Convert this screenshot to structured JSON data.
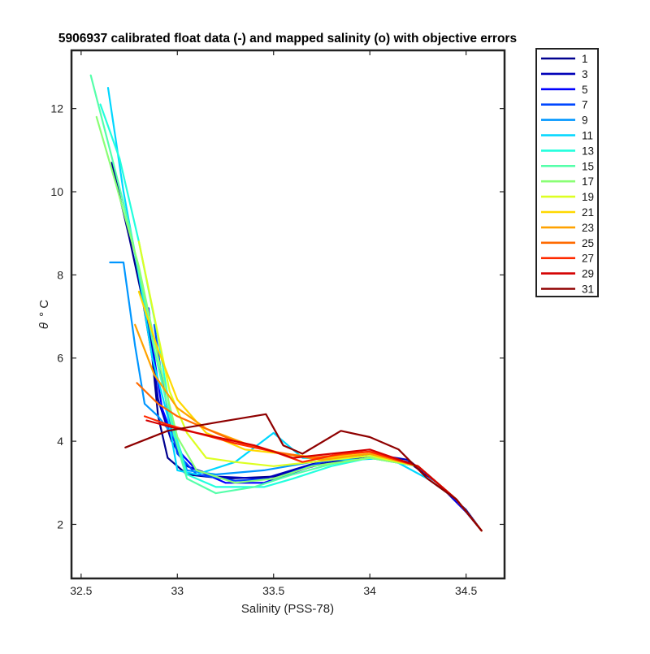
{
  "chart_data": {
    "type": "line",
    "title": "5906937 calibrated float data (-) and mapped salinity (o) with objective errors",
    "xlabel": "Salinity (PSS-78)",
    "ylabel_symbol": "θ",
    "ylabel_unit": "° C",
    "xlim": [
      32.45,
      34.7
    ],
    "ylim": [
      0.7,
      13.4
    ],
    "xticks": [
      32.5,
      33,
      33.5,
      34,
      34.5
    ],
    "xtick_labels": [
      "32.5",
      "33",
      "33.5",
      "34",
      "34.5"
    ],
    "yticks": [
      2,
      4,
      6,
      8,
      10,
      12
    ],
    "ytick_labels": [
      "2",
      "4",
      "6",
      "8",
      "10",
      "12"
    ],
    "grid": false,
    "legend_position": "outside-right",
    "series": [
      {
        "name": "1",
        "color": "#00008f",
        "points": [
          [
            32.66,
            10.7
          ],
          [
            32.75,
            8.9
          ],
          [
            32.82,
            7.4
          ],
          [
            32.87,
            6.0
          ],
          [
            32.9,
            4.6
          ],
          [
            32.95,
            3.6
          ],
          [
            33.05,
            3.2
          ],
          [
            33.25,
            3.1
          ],
          [
            33.5,
            3.15
          ],
          [
            33.75,
            3.45
          ],
          [
            34.0,
            3.65
          ],
          [
            34.2,
            3.5
          ],
          [
            34.35,
            3.0
          ],
          [
            34.5,
            2.35
          ],
          [
            34.58,
            1.85
          ]
        ]
      },
      {
        "name": "3",
        "color": "#0000b8",
        "points": [
          [
            32.82,
            7.5
          ],
          [
            32.86,
            6.5
          ],
          [
            32.9,
            5.0
          ],
          [
            32.97,
            4.0
          ],
          [
            33.05,
            3.4
          ],
          [
            33.2,
            3.15
          ],
          [
            33.45,
            3.1
          ],
          [
            33.7,
            3.45
          ],
          [
            34.0,
            3.7
          ],
          [
            34.2,
            3.55
          ],
          [
            34.35,
            3.0
          ],
          [
            34.5,
            2.3
          ],
          [
            34.58,
            1.85
          ]
        ]
      },
      {
        "name": "5",
        "color": "#0000ff",
        "points": [
          [
            32.85,
            7.2
          ],
          [
            32.88,
            6.0
          ],
          [
            32.92,
            4.8
          ],
          [
            33.0,
            3.8
          ],
          [
            33.1,
            3.3
          ],
          [
            33.25,
            3.0
          ],
          [
            33.45,
            3.0
          ],
          [
            33.7,
            3.4
          ],
          [
            34.0,
            3.6
          ],
          [
            34.25,
            3.4
          ],
          [
            34.4,
            2.8
          ],
          [
            34.5,
            2.3
          ],
          [
            34.58,
            1.85
          ]
        ]
      },
      {
        "name": "7",
        "color": "#0047ff",
        "points": [
          [
            32.88,
            6.8
          ],
          [
            32.92,
            5.5
          ],
          [
            32.96,
            4.5
          ],
          [
            33.0,
            3.7
          ],
          [
            33.1,
            3.2
          ],
          [
            33.3,
            3.05
          ],
          [
            33.5,
            3.1
          ],
          [
            33.75,
            3.5
          ],
          [
            34.0,
            3.65
          ],
          [
            34.25,
            3.4
          ],
          [
            34.45,
            2.6
          ],
          [
            34.58,
            1.85
          ]
        ]
      },
      {
        "name": "9",
        "color": "#0096ff",
        "points": [
          [
            32.65,
            8.3
          ],
          [
            32.72,
            8.3
          ],
          [
            32.78,
            6.3
          ],
          [
            32.83,
            4.9
          ],
          [
            32.9,
            4.6
          ],
          [
            33.0,
            4.0
          ],
          [
            33.05,
            3.3
          ],
          [
            33.2,
            3.2
          ],
          [
            33.45,
            3.3
          ],
          [
            33.7,
            3.5
          ],
          [
            34.0,
            3.65
          ],
          [
            34.25,
            3.4
          ],
          [
            34.45,
            2.6
          ],
          [
            34.58,
            1.85
          ]
        ]
      },
      {
        "name": "11",
        "color": "#00d7ff",
        "points": [
          [
            32.64,
            12.5
          ],
          [
            32.72,
            10.0
          ],
          [
            32.8,
            8.0
          ],
          [
            32.87,
            6.0
          ],
          [
            32.95,
            4.6
          ],
          [
            33.0,
            3.3
          ],
          [
            33.1,
            3.2
          ],
          [
            33.3,
            3.5
          ],
          [
            33.5,
            4.2
          ],
          [
            33.65,
            3.6
          ],
          [
            33.9,
            3.55
          ],
          [
            34.1,
            3.6
          ],
          [
            34.3,
            3.1
          ],
          [
            34.45,
            2.6
          ],
          [
            34.58,
            1.85
          ]
        ]
      },
      {
        "name": "13",
        "color": "#22ffdd",
        "points": [
          [
            32.6,
            12.1
          ],
          [
            32.7,
            10.8
          ],
          [
            32.8,
            8.8
          ],
          [
            32.9,
            6.5
          ],
          [
            32.97,
            4.5
          ],
          [
            33.05,
            3.2
          ],
          [
            33.2,
            2.9
          ],
          [
            33.45,
            2.9
          ],
          [
            33.6,
            3.1
          ],
          [
            33.8,
            3.4
          ],
          [
            34.0,
            3.6
          ],
          [
            34.25,
            3.4
          ],
          [
            34.45,
            2.6
          ],
          [
            34.58,
            1.85
          ]
        ]
      },
      {
        "name": "15",
        "color": "#55ffaa",
        "points": [
          [
            32.55,
            12.8
          ],
          [
            32.65,
            11.0
          ],
          [
            32.76,
            9.0
          ],
          [
            32.88,
            6.2
          ],
          [
            32.98,
            4.2
          ],
          [
            33.05,
            3.1
          ],
          [
            33.2,
            2.75
          ],
          [
            33.4,
            2.9
          ],
          [
            33.6,
            3.2
          ],
          [
            33.8,
            3.45
          ],
          [
            34.0,
            3.6
          ],
          [
            34.25,
            3.4
          ],
          [
            34.45,
            2.6
          ],
          [
            34.58,
            1.85
          ]
        ]
      },
      {
        "name": "17",
        "color": "#8aff75",
        "points": [
          [
            32.58,
            11.8
          ],
          [
            32.68,
            10.2
          ],
          [
            32.8,
            8.2
          ],
          [
            32.9,
            6.0
          ],
          [
            33.0,
            4.1
          ],
          [
            33.1,
            3.3
          ],
          [
            33.3,
            3.0
          ],
          [
            33.5,
            3.1
          ],
          [
            33.7,
            3.4
          ],
          [
            34.0,
            3.6
          ],
          [
            34.25,
            3.4
          ],
          [
            34.45,
            2.6
          ],
          [
            34.58,
            1.85
          ]
        ]
      },
      {
        "name": "19",
        "color": "#ddff22",
        "points": [
          [
            32.8,
            8.8
          ],
          [
            32.88,
            7.0
          ],
          [
            32.96,
            5.2
          ],
          [
            33.05,
            4.2
          ],
          [
            33.15,
            3.6
          ],
          [
            33.3,
            3.5
          ],
          [
            33.5,
            3.4
          ],
          [
            33.7,
            3.5
          ],
          [
            34.0,
            3.65
          ],
          [
            34.25,
            3.4
          ],
          [
            34.45,
            2.6
          ],
          [
            34.58,
            1.85
          ]
        ]
      },
      {
        "name": "21",
        "color": "#ffd800",
        "points": [
          [
            32.8,
            7.6
          ],
          [
            32.9,
            6.2
          ],
          [
            33.0,
            5.0
          ],
          [
            33.15,
            4.2
          ],
          [
            33.35,
            3.8
          ],
          [
            33.55,
            3.7
          ],
          [
            33.75,
            3.6
          ],
          [
            34.0,
            3.7
          ],
          [
            34.25,
            3.4
          ],
          [
            34.45,
            2.6
          ],
          [
            34.58,
            1.85
          ]
        ]
      },
      {
        "name": "23",
        "color": "#ffa200",
        "points": [
          [
            32.78,
            6.8
          ],
          [
            32.88,
            5.6
          ],
          [
            33.0,
            4.8
          ],
          [
            33.15,
            4.3
          ],
          [
            33.35,
            3.95
          ],
          [
            33.55,
            3.7
          ],
          [
            33.75,
            3.55
          ],
          [
            34.0,
            3.7
          ],
          [
            34.25,
            3.4
          ],
          [
            34.45,
            2.6
          ],
          [
            34.58,
            1.85
          ]
        ]
      },
      {
        "name": "25",
        "color": "#ff6a00",
        "points": [
          [
            32.79,
            5.4
          ],
          [
            32.9,
            4.9
          ],
          [
            33.0,
            4.6
          ],
          [
            33.15,
            4.3
          ],
          [
            33.3,
            4.0
          ],
          [
            33.5,
            3.75
          ],
          [
            33.7,
            3.6
          ],
          [
            34.0,
            3.75
          ],
          [
            34.25,
            3.4
          ],
          [
            34.45,
            2.6
          ],
          [
            34.58,
            1.85
          ]
        ]
      },
      {
        "name": "27",
        "color": "#ff2a00",
        "points": [
          [
            32.83,
            4.6
          ],
          [
            32.95,
            4.4
          ],
          [
            33.1,
            4.2
          ],
          [
            33.3,
            3.95
          ],
          [
            33.5,
            3.75
          ],
          [
            33.65,
            3.5
          ],
          [
            33.85,
            3.7
          ],
          [
            34.0,
            3.75
          ],
          [
            34.25,
            3.4
          ],
          [
            34.45,
            2.6
          ],
          [
            34.58,
            1.85
          ]
        ]
      },
      {
        "name": "29",
        "color": "#d40000",
        "points": [
          [
            32.84,
            4.5
          ],
          [
            33.0,
            4.3
          ],
          [
            33.2,
            4.1
          ],
          [
            33.4,
            3.9
          ],
          [
            33.6,
            3.6
          ],
          [
            33.8,
            3.7
          ],
          [
            34.0,
            3.8
          ],
          [
            34.25,
            3.4
          ],
          [
            34.45,
            2.6
          ],
          [
            34.58,
            1.85
          ]
        ]
      },
      {
        "name": "31",
        "color": "#8f0000",
        "points": [
          [
            32.73,
            3.85
          ],
          [
            32.95,
            4.25
          ],
          [
            33.2,
            4.45
          ],
          [
            33.46,
            4.65
          ],
          [
            33.55,
            3.9
          ],
          [
            33.65,
            3.7
          ],
          [
            33.85,
            4.25
          ],
          [
            34.0,
            4.1
          ],
          [
            34.15,
            3.8
          ],
          [
            34.3,
            3.1
          ],
          [
            34.45,
            2.6
          ],
          [
            34.58,
            1.85
          ]
        ]
      }
    ]
  }
}
